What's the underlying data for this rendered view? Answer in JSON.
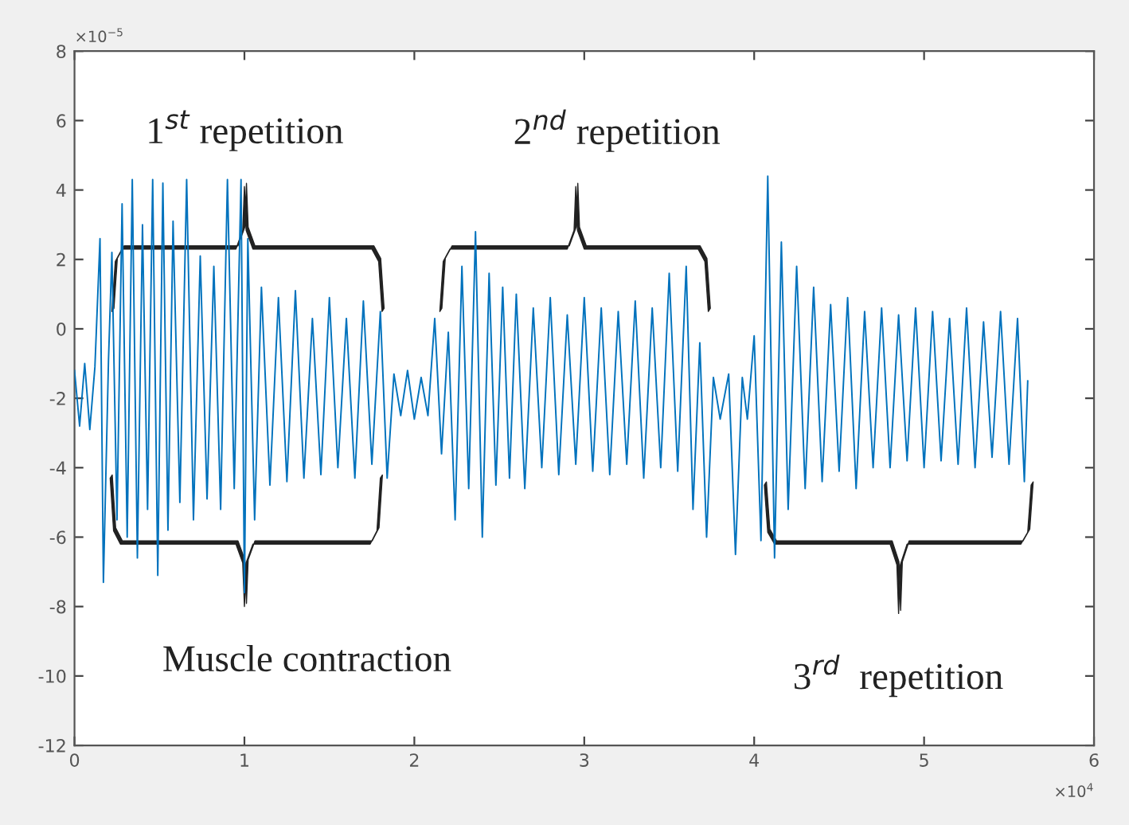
{
  "chart_data": {
    "type": "line",
    "xlim": [
      0,
      6
    ],
    "ylim": [
      -12,
      8
    ],
    "xticks": [
      0,
      1,
      2,
      3,
      4,
      5,
      6
    ],
    "yticks": [
      -12,
      -10,
      -8,
      -6,
      -4,
      -2,
      0,
      2,
      4,
      6,
      8
    ],
    "grid": false,
    "x": [
      0.0,
      0.03,
      0.06,
      0.09,
      0.12,
      0.15,
      0.17,
      0.2,
      0.22,
      0.25,
      0.28,
      0.31,
      0.34,
      0.37,
      0.4,
      0.43,
      0.46,
      0.49,
      0.52,
      0.55,
      0.58,
      0.62,
      0.66,
      0.7,
      0.74,
      0.78,
      0.82,
      0.86,
      0.9,
      0.94,
      0.98,
      1.0,
      1.02,
      1.06,
      1.1,
      1.15,
      1.2,
      1.25,
      1.3,
      1.35,
      1.4,
      1.45,
      1.5,
      1.55,
      1.6,
      1.65,
      1.7,
      1.75,
      1.8,
      1.84,
      1.88,
      1.92,
      1.96,
      2.0,
      2.04,
      2.08,
      2.12,
      2.16,
      2.2,
      2.24,
      2.28,
      2.32,
      2.36,
      2.4,
      2.44,
      2.48,
      2.52,
      2.56,
      2.6,
      2.65,
      2.7,
      2.75,
      2.8,
      2.85,
      2.9,
      2.95,
      3.0,
      3.05,
      3.1,
      3.15,
      3.2,
      3.25,
      3.3,
      3.35,
      3.4,
      3.45,
      3.5,
      3.55,
      3.6,
      3.64,
      3.68,
      3.72,
      3.76,
      3.8,
      3.85,
      3.89,
      3.93,
      3.96,
      4.0,
      4.04,
      4.08,
      4.12,
      4.16,
      4.2,
      4.25,
      4.3,
      4.35,
      4.4,
      4.45,
      4.5,
      4.55,
      4.6,
      4.65,
      4.7,
      4.75,
      4.8,
      4.85,
      4.9,
      4.95,
      5.0,
      5.05,
      5.1,
      5.15,
      5.2,
      5.25,
      5.3,
      5.35,
      5.4,
      5.45,
      5.5,
      5.55,
      5.59,
      5.61
    ],
    "series": [
      {
        "color": "#0072bd",
        "values": [
          -1.2,
          -2.8,
          -1.0,
          -2.9,
          -1.1,
          2.6,
          -7.3,
          -0.9,
          2.2,
          -5.5,
          3.6,
          -6.0,
          4.3,
          -6.6,
          3.0,
          -5.2,
          4.3,
          -7.1,
          4.2,
          -5.8,
          3.1,
          -5.0,
          4.3,
          -5.5,
          2.1,
          -4.9,
          1.8,
          -5.2,
          4.3,
          -4.6,
          4.3,
          -7.6,
          2.6,
          -5.5,
          1.2,
          -4.5,
          0.9,
          -4.4,
          1.1,
          -4.3,
          0.3,
          -4.2,
          0.9,
          -4.0,
          0.3,
          -4.3,
          0.8,
          -3.9,
          0.5,
          -4.3,
          -1.3,
          -2.5,
          -1.2,
          -2.6,
          -1.4,
          -2.5,
          0.3,
          -3.6,
          -0.1,
          -5.5,
          1.8,
          -4.6,
          2.8,
          -6.0,
          1.6,
          -4.5,
          1.2,
          -4.3,
          1.0,
          -4.6,
          0.6,
          -4.0,
          0.9,
          -4.2,
          0.4,
          -3.9,
          0.9,
          -4.1,
          0.6,
          -4.2,
          0.5,
          -3.9,
          0.8,
          -4.3,
          0.6,
          -4.0,
          1.6,
          -4.1,
          1.8,
          -5.2,
          -0.4,
          -6.0,
          -1.4,
          -2.6,
          -1.3,
          -6.5,
          -1.4,
          -2.6,
          -0.2,
          -6.1,
          4.4,
          -6.6,
          2.5,
          -5.2,
          1.8,
          -4.6,
          1.2,
          -4.4,
          0.7,
          -4.1,
          0.9,
          -4.6,
          0.5,
          -4.0,
          0.6,
          -4.0,
          0.4,
          -3.8,
          0.6,
          -4.0,
          0.5,
          -3.8,
          0.3,
          -3.9,
          0.6,
          -4.0,
          0.2,
          -3.7,
          0.5,
          -3.9,
          0.3,
          -4.4,
          -1.5
        ]
      }
    ],
    "annotations": [
      "1$^{st}$ repetition",
      "2$^{nd}$ repetition",
      "Muscle contraction",
      "3$^{rd}$  repetition",
      "×10$^{−5}$",
      "×10$^{4}$"
    ]
  }
}
